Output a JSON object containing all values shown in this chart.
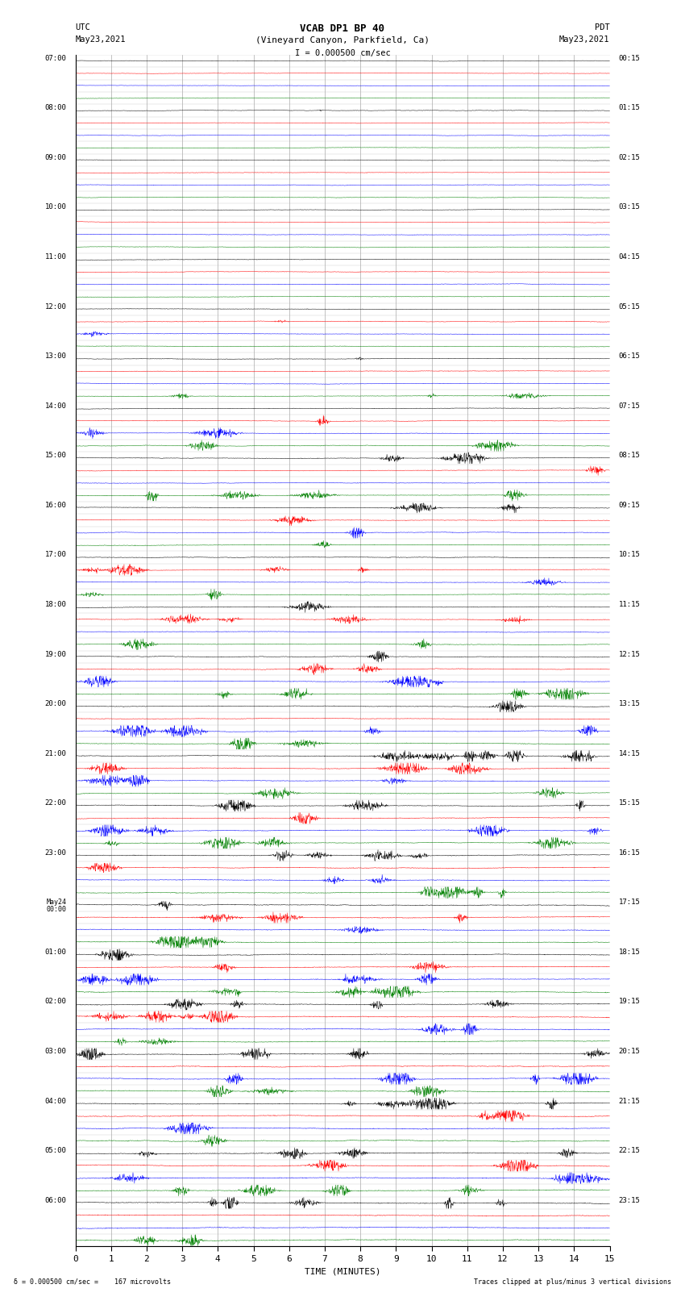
{
  "title_line1": "VCAB DP1 BP 40",
  "title_line2": "(Vineyard Canyon, Parkfield, Ca)",
  "title_line3": "I = 0.000500 cm/sec",
  "label_utc": "UTC",
  "label_pdt": "PDT",
  "label_date_left": "May23,2021",
  "label_date_right": "May23,2021",
  "xlabel": "TIME (MINUTES)",
  "footer_left": "= 0.000500 cm/sec =    167 microvolts",
  "footer_right": "Traces clipped at plus/minus 3 vertical divisions",
  "num_rows": 96,
  "colors_cycle": [
    "black",
    "red",
    "blue",
    "green"
  ],
  "xlim": [
    0,
    15
  ],
  "background_color": "#ffffff",
  "vgrid_color": "#aaaaaa",
  "hgrid_color": "#cccccc",
  "fig_width": 8.5,
  "fig_height": 16.13,
  "left_time_labels": [
    "07:00",
    "",
    "",
    "",
    "08:00",
    "",
    "",
    "",
    "09:00",
    "",
    "",
    "",
    "10:00",
    "",
    "",
    "",
    "11:00",
    "",
    "",
    "",
    "12:00",
    "",
    "",
    "",
    "13:00",
    "",
    "",
    "",
    "14:00",
    "",
    "",
    "",
    "15:00",
    "",
    "",
    "",
    "16:00",
    "",
    "",
    "",
    "17:00",
    "",
    "",
    "",
    "18:00",
    "",
    "",
    "",
    "19:00",
    "",
    "",
    "",
    "20:00",
    "",
    "",
    "",
    "21:00",
    "",
    "",
    "",
    "22:00",
    "",
    "",
    "",
    "23:00",
    "",
    "",
    "",
    "May24|00:00",
    "",
    "",
    "",
    "01:00",
    "",
    "",
    "",
    "02:00",
    "",
    "",
    "",
    "03:00",
    "",
    "",
    "",
    "04:00",
    "",
    "",
    "",
    "05:00",
    "",
    "",
    "",
    "06:00",
    "",
    "",
    ""
  ],
  "right_time_labels": [
    "00:15",
    "",
    "",
    "",
    "01:15",
    "",
    "",
    "",
    "02:15",
    "",
    "",
    "",
    "03:15",
    "",
    "",
    "",
    "04:15",
    "",
    "",
    "",
    "05:15",
    "",
    "",
    "",
    "06:15",
    "",
    "",
    "",
    "07:15",
    "",
    "",
    "",
    "08:15",
    "",
    "",
    "",
    "09:15",
    "",
    "",
    "",
    "10:15",
    "",
    "",
    "",
    "11:15",
    "",
    "",
    "",
    "12:15",
    "",
    "",
    "",
    "13:15",
    "",
    "",
    "",
    "14:15",
    "",
    "",
    "",
    "15:15",
    "",
    "",
    "",
    "16:15",
    "",
    "",
    "",
    "17:15",
    "",
    "",
    "",
    "18:15",
    "",
    "",
    "",
    "19:15",
    "",
    "",
    "",
    "20:15",
    "",
    "",
    "",
    "21:15",
    "",
    "",
    "",
    "22:15",
    "",
    "",
    "",
    "23:15",
    "",
    "",
    ""
  ],
  "xticks": [
    0,
    1,
    2,
    3,
    4,
    5,
    6,
    7,
    8,
    9,
    10,
    11,
    12,
    13,
    14,
    15
  ],
  "seed": 12345,
  "noise_base": 0.025,
  "event_amp_scale": 0.42
}
